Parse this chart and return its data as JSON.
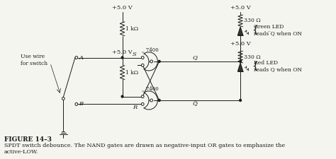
{
  "bg_color": "#f5f5f0",
  "line_color": "#1a1a1a",
  "text_color": "#1a1a1a",
  "caption_title": "FIGURE 14–3",
  "caption_text": "SPDT switch debounce. The NAND gates are drawn as negative-input OR gates to emphasize the\nactive-LOW.",
  "vcc_labels": [
    "+5.0 V",
    "+5.0 V",
    "+5.0 V",
    "+5.0 V"
  ],
  "res1_label": "1 kΩ",
  "res2_label": "1 kΩ",
  "res3_label": "330 Ω",
  "res4_label": "330 Ω",
  "gate1_label": "‗ 7400",
  "gate2_label": "‗ 7400",
  "s_label": "S",
  "r_label": "R",
  "q_label": "Q",
  "qbar_label": "Q̅",
  "a_label": "A",
  "b_label": "B",
  "switch_note": "Use wire\nfor switch",
  "green_led_note": "Green LED\nreads ̅Q when ON",
  "red_led_note": "Red LED\nreads Q when ON",
  "font_sz": 6.0,
  "font_sz_cap_title": 6.5,
  "font_sz_cap_body": 5.8
}
